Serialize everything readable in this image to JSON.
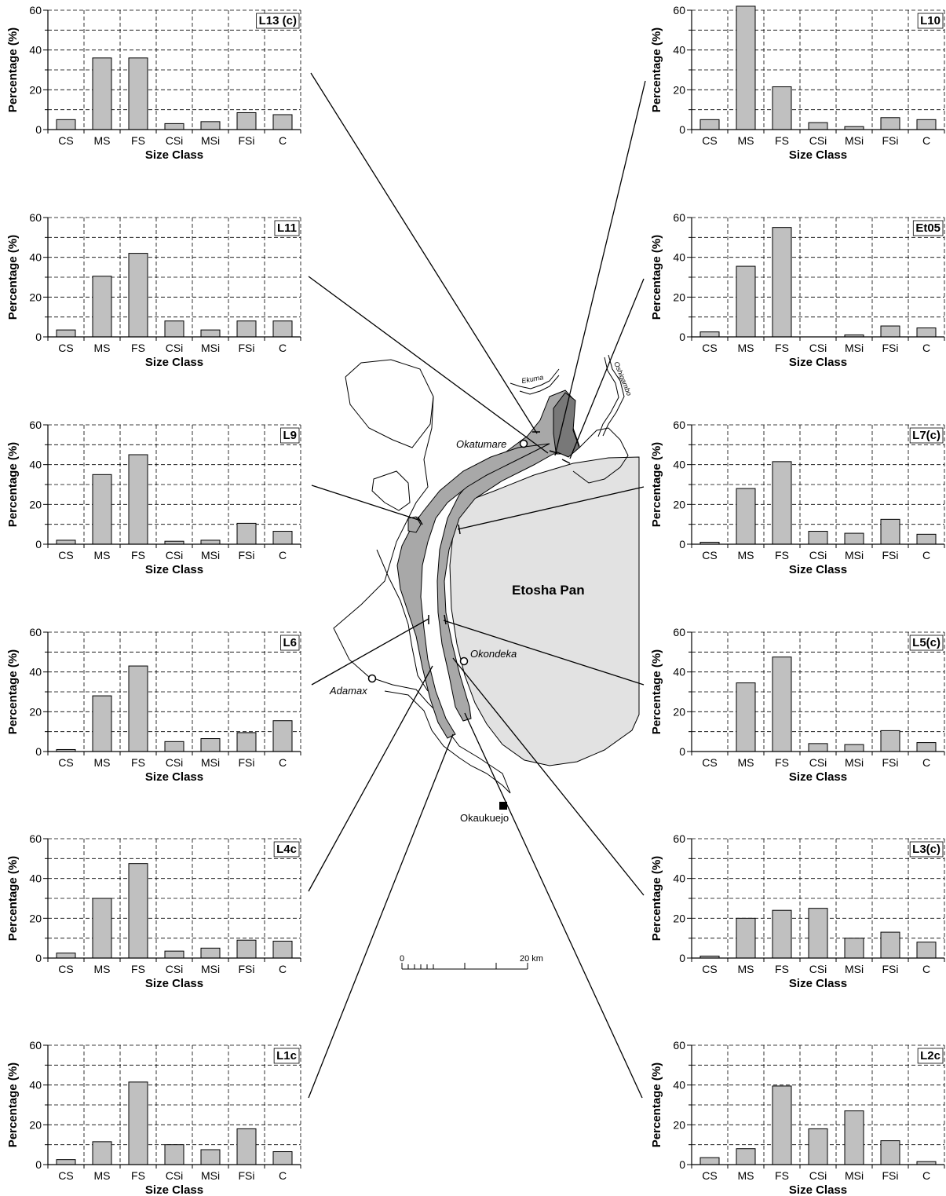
{
  "chart_data": [
    {
      "type": "bar",
      "id": "L13 (c)",
      "title": "L13 (c)",
      "xlabel": "Size Class",
      "ylabel": "Percentage (%)",
      "ylim": [
        0,
        60
      ],
      "yticks": [
        0,
        20,
        40,
        60
      ],
      "grid": true,
      "categories": [
        "CS",
        "MS",
        "FS",
        "CSi",
        "MSi",
        "FSi",
        "C"
      ],
      "values": [
        5,
        36,
        36,
        3,
        4,
        8.5,
        7.5
      ]
    },
    {
      "type": "bar",
      "id": "L10",
      "title": "L10",
      "xlabel": "Size Class",
      "ylabel": "Percentage (%)",
      "ylim": [
        0,
        60
      ],
      "yticks": [
        0,
        20,
        40,
        60
      ],
      "grid": true,
      "categories": [
        "CS",
        "MS",
        "FS",
        "CSi",
        "MSi",
        "FSi",
        "C"
      ],
      "values": [
        5,
        62,
        21.5,
        3.5,
        1.5,
        6,
        5
      ]
    },
    {
      "type": "bar",
      "id": "L11",
      "title": "L11",
      "xlabel": "Size Class",
      "ylabel": "Percentage (%)",
      "ylim": [
        0,
        60
      ],
      "yticks": [
        0,
        20,
        40,
        60
      ],
      "grid": true,
      "categories": [
        "CS",
        "MS",
        "FS",
        "CSi",
        "MSi",
        "FSi",
        "C"
      ],
      "values": [
        3.5,
        30.5,
        42,
        8,
        3.5,
        8,
        8
      ]
    },
    {
      "type": "bar",
      "id": "Et05",
      "title": "Et05",
      "xlabel": "Size Class",
      "ylabel": "Percentage (%)",
      "ylim": [
        0,
        60
      ],
      "yticks": [
        0,
        20,
        40,
        60
      ],
      "grid": true,
      "categories": [
        "CS",
        "MS",
        "FS",
        "CSi",
        "MSi",
        "FSi",
        "C"
      ],
      "values": [
        2.5,
        35.5,
        55,
        0,
        1,
        5.5,
        4.5
      ]
    },
    {
      "type": "bar",
      "id": "L9",
      "title": "L9",
      "xlabel": "Size Class",
      "ylabel": "Percentage (%)",
      "ylim": [
        0,
        60
      ],
      "yticks": [
        0,
        20,
        40,
        60
      ],
      "grid": true,
      "categories": [
        "CS",
        "MS",
        "FS",
        "CSi",
        "MSi",
        "FSi",
        "C"
      ],
      "values": [
        2,
        35,
        45,
        1.5,
        2,
        10.5,
        6.5
      ]
    },
    {
      "type": "bar",
      "id": "L7(c)",
      "title": "L7(c)",
      "xlabel": "Size Class",
      "ylabel": "Percentage (%)",
      "ylim": [
        0,
        60
      ],
      "yticks": [
        0,
        20,
        40,
        60
      ],
      "grid": true,
      "categories": [
        "CS",
        "MS",
        "FS",
        "CSi",
        "MSi",
        "FSi",
        "C"
      ],
      "values": [
        1,
        28,
        41.5,
        6.5,
        5.5,
        12.5,
        5
      ]
    },
    {
      "type": "bar",
      "id": "L6",
      "title": "L6",
      "xlabel": "Size Class",
      "ylabel": "Percentage (%)",
      "ylim": [
        0,
        60
      ],
      "yticks": [
        0,
        20,
        40,
        60
      ],
      "grid": true,
      "categories": [
        "CS",
        "MS",
        "FS",
        "CSi",
        "MSi",
        "FSi",
        "C"
      ],
      "values": [
        1,
        28,
        43,
        5,
        6.5,
        9.5,
        15.5
      ]
    },
    {
      "type": "bar",
      "id": "L5(c)",
      "title": "L5(c)",
      "xlabel": "Size Class",
      "ylabel": "Percentage (%)",
      "ylim": [
        0,
        60
      ],
      "yticks": [
        0,
        20,
        40,
        60
      ],
      "grid": true,
      "categories": [
        "CS",
        "MS",
        "FS",
        "CSi",
        "MSi",
        "FSi",
        "C"
      ],
      "values": [
        0,
        34.5,
        47.5,
        4,
        3.5,
        10.5,
        4.5
      ]
    },
    {
      "type": "bar",
      "id": "L4c",
      "title": "L4c",
      "xlabel": "Size Class",
      "ylabel": "Percentage (%)",
      "ylim": [
        0,
        60
      ],
      "yticks": [
        0,
        20,
        40,
        60
      ],
      "grid": true,
      "categories": [
        "CS",
        "MS",
        "FS",
        "CSi",
        "MSi",
        "FSi",
        "C"
      ],
      "values": [
        2.5,
        30,
        47.5,
        3.5,
        5,
        9,
        8.5
      ]
    },
    {
      "type": "bar",
      "id": "L3(c)",
      "title": "L3(c)",
      "xlabel": "Size Class",
      "ylabel": "Percentage (%)",
      "ylim": [
        0,
        60
      ],
      "yticks": [
        0,
        20,
        40,
        60
      ],
      "grid": true,
      "categories": [
        "CS",
        "MS",
        "FS",
        "CSi",
        "MSi",
        "FSi",
        "C"
      ],
      "values": [
        1,
        20,
        24,
        25,
        10,
        13,
        8
      ]
    },
    {
      "type": "bar",
      "id": "L1c",
      "title": "L1c",
      "xlabel": "Size Class",
      "ylabel": "Percentage (%)",
      "ylim": [
        0,
        60
      ],
      "yticks": [
        0,
        20,
        40,
        60
      ],
      "grid": true,
      "categories": [
        "CS",
        "MS",
        "FS",
        "CSi",
        "MSi",
        "FSi",
        "C"
      ],
      "values": [
        2.5,
        11.5,
        41.5,
        10,
        7.5,
        18,
        6.5
      ]
    },
    {
      "type": "bar",
      "id": "L2c",
      "title": "L2c",
      "xlabel": "Size Class",
      "ylabel": "Percentage (%)",
      "ylim": [
        0,
        60
      ],
      "yticks": [
        0,
        20,
        40,
        60
      ],
      "grid": true,
      "categories": [
        "CS",
        "MS",
        "FS",
        "CSi",
        "MSi",
        "FSi",
        "C"
      ],
      "values": [
        3.5,
        8,
        39.5,
        18,
        27,
        12,
        1.5
      ]
    }
  ],
  "map": {
    "pan_label": "Etosha Pan",
    "places": [
      "Okatumare",
      "Okondeka",
      "Adamax",
      "Okaukuejo"
    ],
    "rivers": [
      "Ekuma",
      "Oshigambo"
    ],
    "scale": {
      "start": "0",
      "end": "20 km"
    }
  },
  "colors": {
    "bar_fill": "#c0c0c0",
    "pan_fill": "#e2e2e2",
    "lunette_fill": "#a8a8a8",
    "lunette_dark": "#787878"
  }
}
